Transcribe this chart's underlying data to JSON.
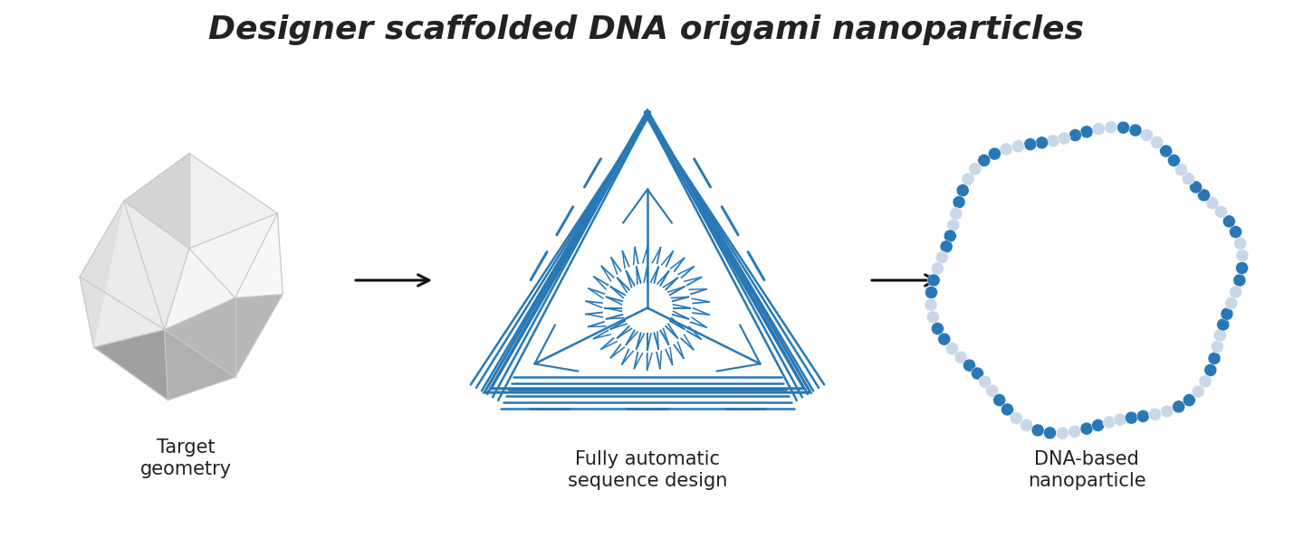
{
  "title": "Designer scaffolded DNA origami nanoparticles",
  "title_fontsize": 26,
  "background_color": "#ffffff",
  "labels": [
    "Target\ngeometry",
    "Fully automatic\nsequence design",
    "DNA-based\nnanoparticle"
  ],
  "label_fontsize": 15,
  "arrow_color": "#111111",
  "dna_blue": "#2878b5",
  "dna_light_blue": "#9dc8e8",
  "dna_grey": "#c8d8e8",
  "dna_white_blue": "#ddeeff"
}
